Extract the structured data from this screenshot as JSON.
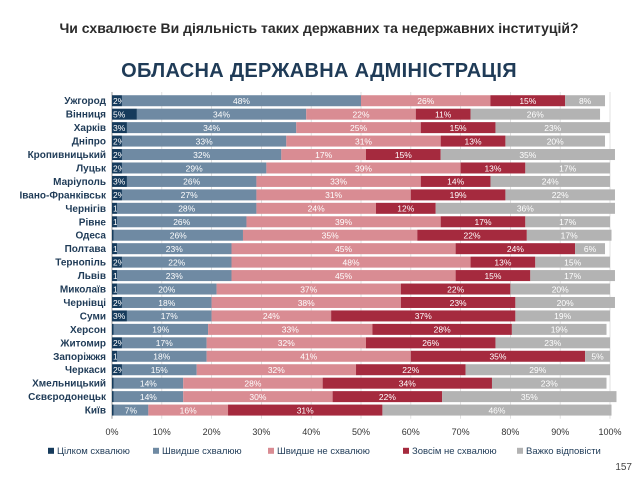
{
  "question": "Чи схвалюєте Ви діяльність таких державних та недержавних інституцій?",
  "page_number": "157",
  "colors": {
    "tsilkom_skhvaliuiu": "#163b5c",
    "shvydshe_skhvaliuiu": "#6f8aa3",
    "shvydshe_ne_skhvaliuiu": "#d98c93",
    "zovsim_ne_skhvaliuiu": "#a52a3e",
    "vazhko_vidpovisty": "#b3b3b3"
  },
  "chart_data": {
    "type": "bar",
    "orientation": "horizontal",
    "stacked": true,
    "percent_stacked": true,
    "title": "ОБЛАСНА ДЕРЖАВНА АДМІНІСТРАЦІЯ",
    "xlabel": "",
    "ylabel": "",
    "xlim": [
      0,
      100
    ],
    "x_ticks": [
      "0%",
      "10%",
      "20%",
      "30%",
      "40%",
      "50%",
      "60%",
      "70%",
      "80%",
      "90%",
      "100%"
    ],
    "grid": true,
    "legend_position": "bottom",
    "categories": [
      "Ужгород",
      "Вінниця",
      "Харків",
      "Дніпро",
      "Кропивницький",
      "Луцьк",
      "Маріуполь",
      "Івано-Франківськ",
      "Чернігів",
      "Рівне",
      "Одеса",
      "Полтава",
      "Тернопіль",
      "Львів",
      "Миколаїв",
      "Чернівці",
      "Суми",
      "Херсон",
      "Житомир",
      "Запоріжжя",
      "Черкаси",
      "Хмельницький",
      "Сєвєродонецьк",
      "Київ"
    ],
    "series": [
      {
        "name": "Цілком схвалюю",
        "values": [
          2,
          5,
          3,
          2,
          2,
          2,
          3,
          2,
          1,
          1,
          0.3,
          1,
          2,
          1,
          1,
          2,
          3,
          0.3,
          2,
          1,
          2,
          0.3,
          0.3,
          0.3
        ],
        "labels": [
          "2%",
          "5%",
          "3%",
          "2%",
          "2%",
          "2%",
          "3%",
          "2%",
          "1%",
          "1%",
          "",
          "1%",
          "2%",
          "1%",
          "1%",
          "2%",
          "3%",
          "",
          "2%",
          "1%",
          "2%",
          "",
          "",
          ""
        ]
      },
      {
        "name": "Швидше схвалюю",
        "values": [
          48,
          34,
          34,
          33,
          32,
          29,
          26,
          27,
          28,
          26,
          26,
          23,
          22,
          23,
          20,
          18,
          17,
          19,
          17,
          18,
          15,
          14,
          14,
          7
        ],
        "labels": [
          "48%",
          "34%",
          "34%",
          "33%",
          "32%",
          "29%",
          "26%",
          "27%",
          "28%",
          "26%",
          "26%",
          "23%",
          "22%",
          "23%",
          "20%",
          "18%",
          "17%",
          "19%",
          "17%",
          "18%",
          "15%",
          "14%",
          "14%",
          "7%"
        ]
      },
      {
        "name": "Швидше не схвалюю",
        "values": [
          26,
          22,
          25,
          31,
          17,
          39,
          33,
          31,
          24,
          39,
          35,
          45,
          48,
          45,
          37,
          38,
          24,
          33,
          32,
          41,
          32,
          28,
          30,
          16
        ],
        "labels": [
          "26%",
          "22%",
          "25%",
          "31%",
          "17%",
          "39%",
          "33%",
          "31%",
          "24%",
          "39%",
          "35%",
          "45%",
          "48%",
          "45%",
          "37%",
          "38%",
          "24%",
          "33%",
          "32%",
          "41%",
          "32%",
          "28%",
          "30%",
          "16%"
        ]
      },
      {
        "name": "Зовсім не схвалюю",
        "values": [
          15,
          11,
          15,
          13,
          15,
          13,
          14,
          19,
          12,
          17,
          22,
          24,
          13,
          15,
          22,
          23,
          37,
          28,
          26,
          35,
          22,
          34,
          22,
          31
        ],
        "labels": [
          "15%",
          "11%",
          "15%",
          "13%",
          "15%",
          "13%",
          "14%",
          "19%",
          "12%",
          "17%",
          "22%",
          "24%",
          "13%",
          "15%",
          "22%",
          "23%",
          "37%",
          "28%",
          "26%",
          "35%",
          "22%",
          "34%",
          "22%",
          "31%"
        ]
      },
      {
        "name": "Важко відповісти",
        "values": [
          8,
          26,
          23,
          20,
          35,
          17,
          24,
          22,
          36,
          17,
          17,
          6,
          15,
          17,
          20,
          20,
          19,
          19,
          23,
          5,
          29,
          23,
          35,
          46
        ],
        "labels": [
          "8%",
          "26%",
          "23%",
          "20%",
          "35%",
          "17%",
          "24%",
          "22%",
          "36%",
          "17%",
          "17%",
          "6%",
          "15%",
          "17%",
          "20%",
          "20%",
          "19%",
          "19%",
          "23%",
          "5%",
          "29%",
          "23%",
          "35%",
          "46%"
        ]
      }
    ]
  }
}
